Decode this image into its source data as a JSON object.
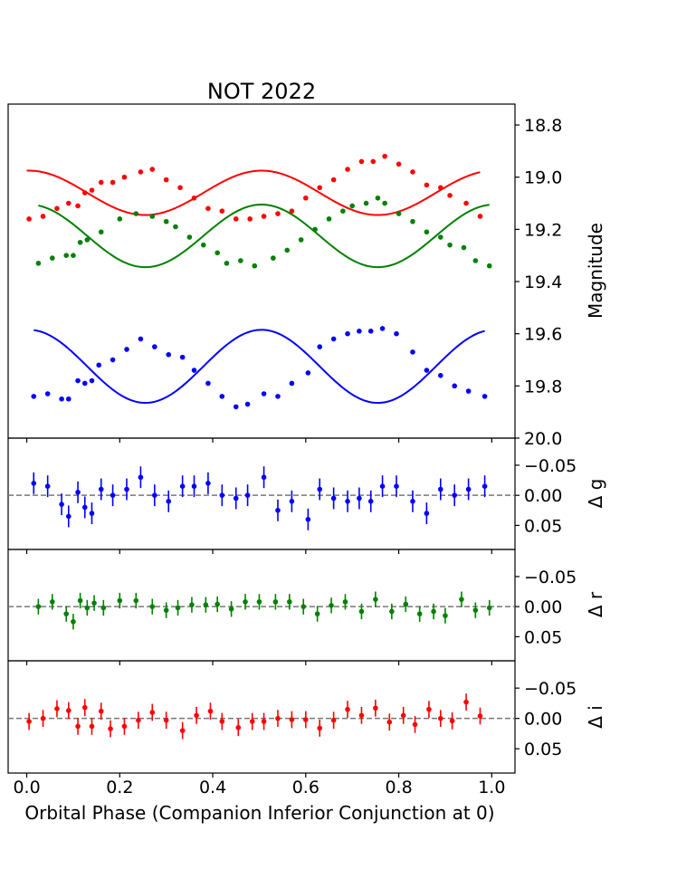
{
  "chart_data": {
    "type": "scatter",
    "title": "NOT 2022",
    "xlabel": "Orbital Phase (Companion Inferior Conjunction at 0)",
    "x_ticks": [
      "0.0",
      "0.2",
      "0.4",
      "0.6",
      "0.8",
      "1.0"
    ],
    "xlim": [
      -0.04,
      1.05
    ],
    "panels": [
      {
        "id": "magnitude",
        "ylabel": "Magnitude",
        "ylim": [
          18.72,
          20.0
        ],
        "inverted": true,
        "y_ticks": [
          "18.8",
          "19.0",
          "19.2",
          "19.4",
          "19.6",
          "19.8",
          "20.0"
        ],
        "series": [
          {
            "color": "#ff0000",
            "model": {
              "mean": 19.06,
              "amp": -0.085,
              "offset": 0.005,
              "phase_min": 0.0,
              "phase_max": 0.975
            },
            "x": [
              0.005,
              0.035,
              0.065,
              0.09,
              0.11,
              0.125,
              0.14,
              0.16,
              0.185,
              0.21,
              0.245,
              0.27,
              0.3,
              0.33,
              0.36,
              0.39,
              0.42,
              0.45,
              0.48,
              0.51,
              0.54,
              0.57,
              0.6,
              0.63,
              0.66,
              0.69,
              0.72,
              0.745,
              0.77,
              0.8,
              0.83,
              0.86,
              0.89,
              0.91,
              0.945,
              0.975
            ],
            "y": [
              19.16,
              19.15,
              19.12,
              19.1,
              19.11,
              19.06,
              19.05,
              19.02,
              19.02,
              19.0,
              18.98,
              18.97,
              19.01,
              19.04,
              19.08,
              19.12,
              19.13,
              19.16,
              19.16,
              19.15,
              19.14,
              19.13,
              19.08,
              19.04,
              19.01,
              18.97,
              18.94,
              18.94,
              18.92,
              18.95,
              18.98,
              19.03,
              19.04,
              19.07,
              19.1,
              19.15
            ]
          },
          {
            "color": "#008000",
            "model": {
              "mean": 19.225,
              "amp": -0.12,
              "offset": 0.005,
              "phase_min": 0.025,
              "phase_max": 0.995
            },
            "x": [
              0.025,
              0.055,
              0.085,
              0.1,
              0.115,
              0.13,
              0.16,
              0.2,
              0.235,
              0.27,
              0.3,
              0.32,
              0.35,
              0.38,
              0.41,
              0.43,
              0.46,
              0.49,
              0.53,
              0.56,
              0.59,
              0.62,
              0.65,
              0.68,
              0.7,
              0.73,
              0.755,
              0.77,
              0.8,
              0.83,
              0.86,
              0.89,
              0.91,
              0.94,
              0.965,
              0.995
            ],
            "y": [
              19.33,
              19.31,
              19.3,
              19.3,
              19.25,
              19.24,
              19.21,
              19.16,
              19.14,
              19.15,
              19.17,
              19.19,
              19.23,
              19.26,
              19.29,
              19.33,
              19.32,
              19.34,
              19.31,
              19.28,
              19.24,
              19.2,
              19.16,
              19.13,
              19.11,
              19.1,
              19.08,
              19.1,
              19.14,
              19.17,
              19.21,
              19.23,
              19.26,
              19.27,
              19.32,
              19.34
            ]
          },
          {
            "color": "#0000ff",
            "model": {
              "mean": 19.725,
              "amp": -0.14,
              "offset": 0.005,
              "phase_min": 0.015,
              "phase_max": 0.985
            },
            "x": [
              0.015,
              0.045,
              0.075,
              0.09,
              0.11,
              0.125,
              0.14,
              0.155,
              0.185,
              0.215,
              0.245,
              0.275,
              0.305,
              0.335,
              0.36,
              0.39,
              0.42,
              0.45,
              0.475,
              0.51,
              0.54,
              0.57,
              0.605,
              0.63,
              0.66,
              0.69,
              0.715,
              0.74,
              0.765,
              0.795,
              0.83,
              0.86,
              0.89,
              0.92,
              0.95,
              0.985
            ],
            "y": [
              19.84,
              19.83,
              19.85,
              19.85,
              19.78,
              19.79,
              19.78,
              19.72,
              19.7,
              19.66,
              19.62,
              19.65,
              19.68,
              19.69,
              19.74,
              19.79,
              19.84,
              19.88,
              19.87,
              19.83,
              19.84,
              19.79,
              19.75,
              19.65,
              19.62,
              19.6,
              19.59,
              19.59,
              19.58,
              19.6,
              19.67,
              19.74,
              19.76,
              19.8,
              19.82,
              19.84
            ]
          }
        ]
      },
      {
        "id": "residual-g",
        "ylabel": "Δ g",
        "ylim": [
          -0.095,
          0.09
        ],
        "inverted": true,
        "y_ticks": [
          "−0.05",
          "0.00",
          "0.05"
        ],
        "series": [
          {
            "color": "#0000ff",
            "x": [
              0.015,
              0.045,
              0.075,
              0.09,
              0.11,
              0.125,
              0.14,
              0.16,
              0.185,
              0.215,
              0.245,
              0.275,
              0.305,
              0.335,
              0.36,
              0.39,
              0.42,
              0.45,
              0.475,
              0.51,
              0.54,
              0.57,
              0.605,
              0.63,
              0.66,
              0.69,
              0.715,
              0.74,
              0.765,
              0.795,
              0.83,
              0.86,
              0.89,
              0.92,
              0.95,
              0.985
            ],
            "y": [
              -0.02,
              -0.015,
              0.015,
              0.035,
              -0.005,
              0.02,
              0.03,
              -0.01,
              0.0,
              -0.01,
              -0.03,
              0.0,
              0.01,
              -0.015,
              -0.015,
              -0.02,
              0.0,
              0.005,
              0.0,
              -0.03,
              0.025,
              0.01,
              0.04,
              -0.01,
              0.005,
              0.01,
              0.005,
              0.01,
              -0.015,
              -0.015,
              0.01,
              0.03,
              -0.01,
              0.0,
              -0.01,
              -0.015
            ],
            "err": 0.018
          }
        ]
      },
      {
        "id": "residual-r",
        "ylabel": "Δ r",
        "ylim": [
          -0.095,
          0.09
        ],
        "inverted": true,
        "y_ticks": [
          "−0.05",
          "0.00",
          "0.05"
        ],
        "series": [
          {
            "color": "#008000",
            "x": [
              0.025,
              0.055,
              0.085,
              0.1,
              0.115,
              0.13,
              0.145,
              0.165,
              0.2,
              0.235,
              0.27,
              0.3,
              0.325,
              0.355,
              0.385,
              0.41,
              0.44,
              0.47,
              0.5,
              0.535,
              0.565,
              0.595,
              0.625,
              0.655,
              0.685,
              0.72,
              0.75,
              0.785,
              0.815,
              0.845,
              0.875,
              0.9,
              0.935,
              0.965,
              0.995
            ],
            "y": [
              0.0,
              -0.008,
              0.012,
              0.025,
              -0.01,
              0.002,
              -0.006,
              0.002,
              -0.01,
              -0.01,
              0.0,
              0.006,
              0.002,
              -0.003,
              -0.003,
              -0.004,
              0.004,
              -0.008,
              -0.008,
              -0.008,
              -0.008,
              0.0,
              0.012,
              -0.002,
              -0.008,
              0.008,
              -0.012,
              0.008,
              -0.004,
              0.012,
              0.008,
              0.015,
              -0.012,
              0.006,
              0.002
            ],
            "err": 0.013
          }
        ]
      },
      {
        "id": "residual-i",
        "ylabel": "Δ i",
        "ylim": [
          -0.095,
          0.09
        ],
        "inverted": true,
        "y_ticks": [
          "−0.05",
          "0.00",
          "0.05"
        ],
        "series": [
          {
            "color": "#ff0000",
            "x": [
              0.005,
              0.035,
              0.065,
              0.09,
              0.11,
              0.125,
              0.14,
              0.16,
              0.18,
              0.21,
              0.24,
              0.27,
              0.3,
              0.335,
              0.365,
              0.395,
              0.42,
              0.455,
              0.485,
              0.51,
              0.54,
              0.57,
              0.6,
              0.63,
              0.66,
              0.69,
              0.72,
              0.75,
              0.78,
              0.81,
              0.835,
              0.865,
              0.89,
              0.915,
              0.945,
              0.975
            ],
            "y": [
              0.005,
              0.0,
              -0.016,
              -0.013,
              0.013,
              -0.018,
              0.013,
              -0.012,
              0.017,
              0.013,
              0.003,
              -0.01,
              0.003,
              0.02,
              -0.005,
              -0.012,
              0.005,
              0.015,
              0.005,
              0.005,
              0.0,
              0.002,
              0.002,
              0.016,
              0.003,
              -0.015,
              -0.005,
              -0.017,
              0.006,
              -0.005,
              0.01,
              -0.015,
              0.0,
              0.004,
              -0.027,
              -0.004
            ],
            "err": 0.014
          }
        ]
      }
    ]
  }
}
